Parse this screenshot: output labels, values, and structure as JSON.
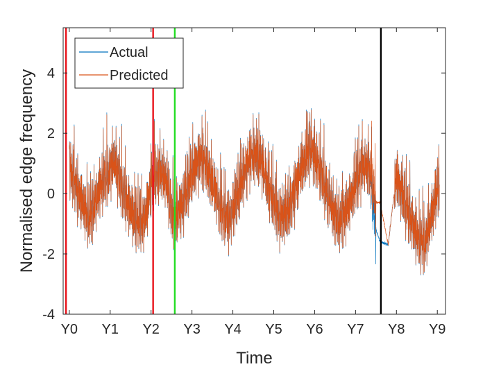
{
  "chart_data": {
    "type": "line",
    "xlabel": "Time",
    "ylabel": "Normalised edge frequency",
    "xlim": [
      -0.15,
      9.2
    ],
    "ylim": [
      -4,
      5.5
    ],
    "x_ticks": [
      0,
      1,
      2,
      3,
      4,
      5,
      6,
      7,
      8,
      9
    ],
    "x_tick_labels": [
      "Y0",
      "Y1",
      "Y2",
      "Y3",
      "Y4",
      "Y5",
      "Y6",
      "Y7",
      "Y8",
      "Y9"
    ],
    "y_ticks": [
      -4,
      -2,
      0,
      2,
      4
    ],
    "y_tick_labels": [
      "-4",
      "-2",
      "0",
      "2",
      "4"
    ],
    "grid": false,
    "legend_position": "top-left",
    "series": [
      {
        "name": "Actual",
        "color": "#0072BD",
        "x": [
          0.0,
          0.2,
          0.4,
          0.5,
          0.65,
          0.8,
          1.0,
          1.1,
          1.2,
          1.4,
          1.6,
          1.8,
          1.9,
          2.0,
          2.2,
          2.4,
          2.5,
          2.6,
          2.8,
          3.0,
          3.2,
          3.35,
          3.5,
          3.7,
          3.9,
          4.0,
          4.2,
          4.4,
          4.55,
          4.7,
          4.9,
          5.1,
          5.2,
          5.4,
          5.6,
          5.75,
          5.9,
          6.1,
          6.3,
          6.45,
          6.6,
          6.8,
          7.0,
          7.2,
          7.35,
          7.5,
          7.6,
          7.8,
          7.9,
          8.0,
          8.2,
          8.4,
          8.55,
          8.7,
          8.9,
          9.05
        ],
        "values": [
          0.9,
          0.0,
          -0.6,
          -0.9,
          -0.3,
          0.3,
          0.7,
          1.0,
          0.5,
          -0.3,
          -0.9,
          -1.0,
          -0.6,
          0.3,
          0.7,
          0.2,
          -0.7,
          -0.9,
          -0.3,
          0.6,
          1.1,
          0.9,
          0.2,
          -0.6,
          -1.0,
          -0.7,
          0.3,
          1.0,
          1.3,
          0.9,
          0.0,
          -0.7,
          -0.9,
          -0.5,
          0.4,
          1.1,
          1.4,
          0.8,
          0.0,
          -0.7,
          -1.0,
          -0.6,
          0.3,
          0.9,
          0.7,
          -1.2,
          -1.6,
          -1.7,
          -0.5,
          0.5,
          -0.3,
          -1.1,
          -1.6,
          -1.7,
          -0.6,
          0.4
        ]
      },
      {
        "name": "Predicted",
        "color": "#D95319",
        "x": [
          0.0,
          0.2,
          0.4,
          0.5,
          0.65,
          0.8,
          1.0,
          1.1,
          1.2,
          1.4,
          1.6,
          1.8,
          1.9,
          2.0,
          2.2,
          2.4,
          2.5,
          2.6,
          2.8,
          3.0,
          3.2,
          3.35,
          3.5,
          3.7,
          3.9,
          4.0,
          4.2,
          4.4,
          4.55,
          4.7,
          4.9,
          5.1,
          5.2,
          5.4,
          5.6,
          5.75,
          5.9,
          6.1,
          6.3,
          6.45,
          6.6,
          6.8,
          7.0,
          7.2,
          7.35,
          7.5,
          7.6,
          7.8,
          7.9,
          8.0,
          8.2,
          8.4,
          8.55,
          8.7,
          8.9,
          9.05
        ],
        "values": [
          0.9,
          0.0,
          -0.6,
          -0.9,
          -0.3,
          0.3,
          0.7,
          1.0,
          0.5,
          -0.3,
          -0.9,
          -1.0,
          -0.6,
          0.3,
          0.7,
          0.2,
          -0.7,
          -0.9,
          -0.3,
          0.6,
          1.1,
          0.9,
          0.2,
          -0.6,
          -1.0,
          -0.7,
          0.3,
          1.0,
          1.3,
          0.9,
          0.0,
          -0.7,
          -0.9,
          -0.5,
          0.4,
          1.1,
          1.4,
          0.8,
          0.0,
          -0.7,
          -1.0,
          -0.6,
          0.3,
          0.9,
          0.7,
          -0.3,
          -0.3,
          -1.7,
          -0.5,
          0.5,
          -0.3,
          -1.1,
          -1.6,
          -1.7,
          -0.6,
          0.4
        ]
      }
    ],
    "vertical_markers": [
      {
        "x": -0.08,
        "color": "#E8141C"
      },
      {
        "x": 2.05,
        "color": "#E8141C"
      },
      {
        "x": 2.58,
        "color": "#22DD22"
      },
      {
        "x": 7.62,
        "color": "#000000"
      }
    ]
  }
}
